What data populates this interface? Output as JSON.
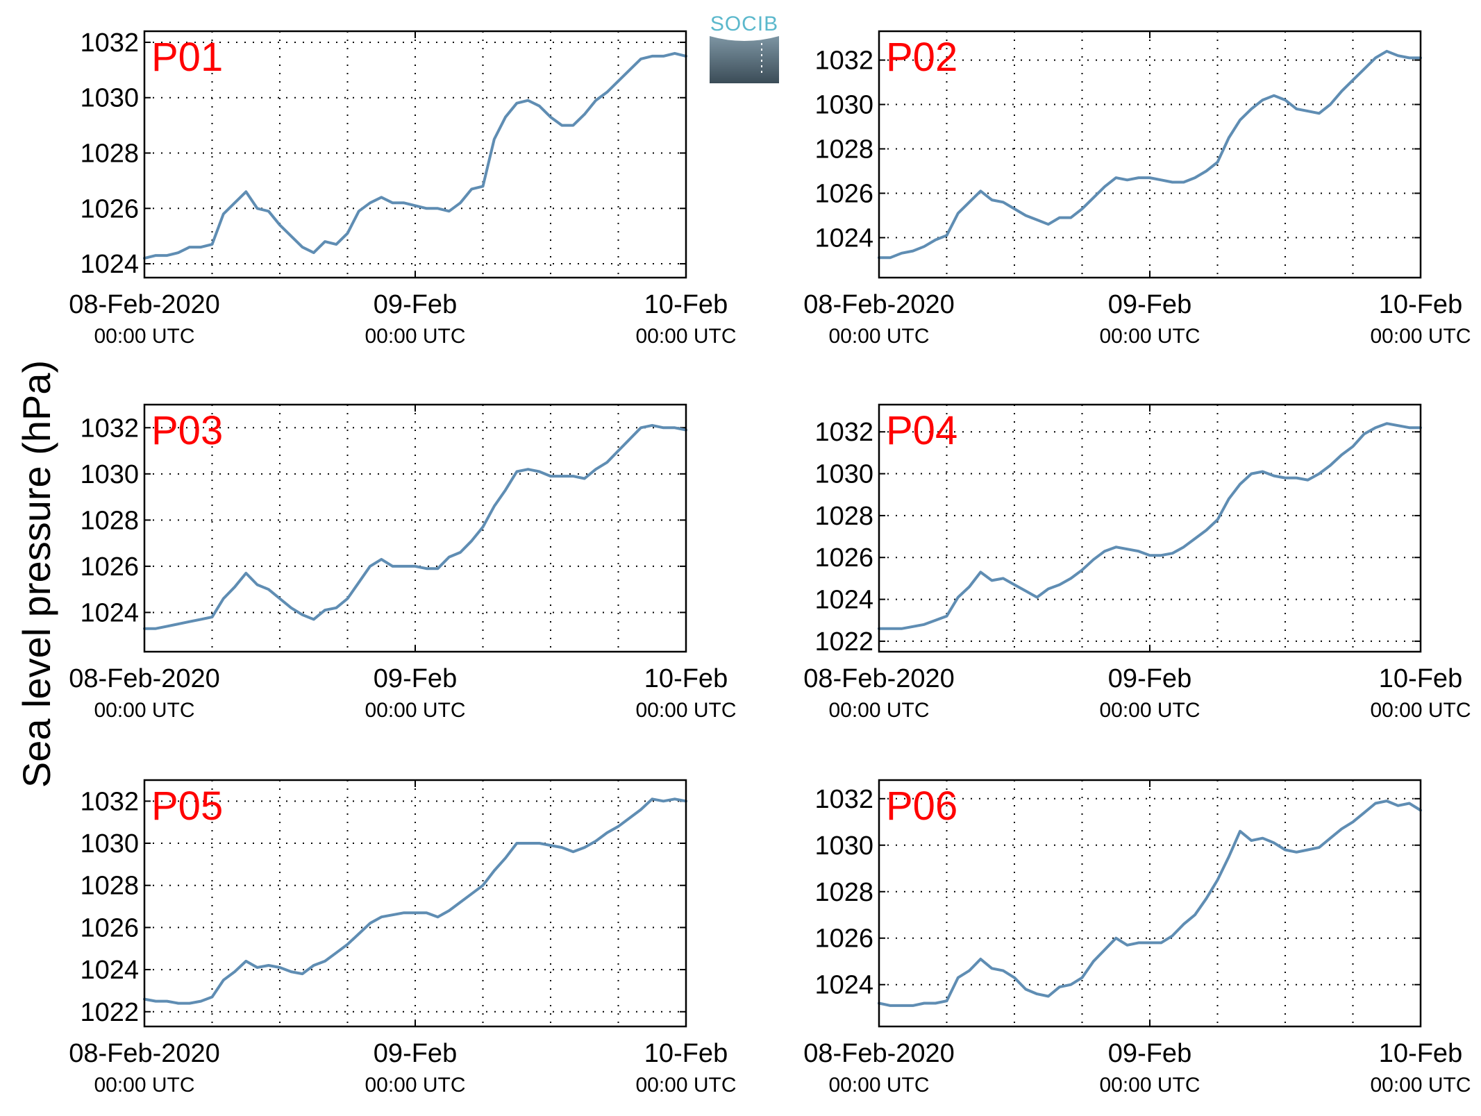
{
  "figure": {
    "ylabel": "Sea level pressure (hPa)",
    "logo_text": "SOCIB"
  },
  "colors": {
    "series": "#5f8db3",
    "panel_title": "#ff0000",
    "grid": "#000000"
  },
  "chart_data": [
    {
      "type": "line",
      "title": "P01",
      "x_ticks": [
        {
          "date": "08-Feb-2020",
          "time": "00:00 UTC"
        },
        {
          "date": "09-Feb",
          "time": "00:00 UTC"
        },
        {
          "date": "10-Feb",
          "time": "00:00 UTC"
        }
      ],
      "xlim": [
        0,
        48
      ],
      "ylim": [
        1023.5,
        1032.4
      ],
      "y_ticks": [
        1024,
        1026,
        1028,
        1030,
        1032
      ],
      "grid": true,
      "x": [
        0,
        1,
        2,
        3,
        4,
        4.5,
        5,
        6,
        7,
        8,
        9,
        10,
        11,
        12,
        13,
        14,
        15,
        16,
        17,
        18,
        19,
        20,
        21,
        22,
        23,
        24,
        25,
        26,
        27,
        28,
        29,
        30,
        31,
        32,
        33,
        34,
        35,
        36,
        37,
        38,
        39,
        40,
        41,
        42,
        43,
        44,
        45,
        46,
        47,
        48
      ],
      "values": [
        1024.2,
        1024.3,
        1024.3,
        1024.4,
        1024.6,
        1024.6,
        1024.6,
        1024.7,
        1025.8,
        1026.2,
        1026.6,
        1026.0,
        1025.9,
        1025.4,
        1025.0,
        1024.6,
        1024.4,
        1024.8,
        1024.7,
        1025.1,
        1025.9,
        1026.2,
        1026.4,
        1026.2,
        1026.2,
        1026.1,
        1026.0,
        1026.0,
        1025.9,
        1026.2,
        1026.7,
        1026.8,
        1028.5,
        1029.3,
        1029.8,
        1029.9,
        1029.7,
        1029.3,
        1029.0,
        1029.0,
        1029.4,
        1029.9,
        1030.2,
        1030.6,
        1031.0,
        1031.4,
        1031.5,
        1031.5,
        1031.6,
        1031.5
      ]
    },
    {
      "type": "line",
      "title": "P02",
      "x_ticks": [
        {
          "date": "08-Feb-2020",
          "time": "00:00 UTC"
        },
        {
          "date": "09-Feb",
          "time": "00:00 UTC"
        },
        {
          "date": "10-Feb",
          "time": "00:00 UTC"
        }
      ],
      "xlim": [
        0,
        48
      ],
      "ylim": [
        1022.2,
        1033.3
      ],
      "y_ticks": [
        1024,
        1026,
        1028,
        1030,
        1032
      ],
      "grid": true,
      "x": [
        0,
        1,
        2,
        3,
        4,
        5,
        6,
        7,
        8,
        9,
        10,
        11,
        12,
        13,
        14,
        15,
        16,
        17,
        18,
        19,
        20,
        21,
        22,
        23,
        24,
        25,
        26,
        27,
        28,
        29,
        30,
        31,
        32,
        33,
        34,
        35,
        36,
        37,
        38,
        39,
        40,
        41,
        42,
        43,
        44,
        45,
        46,
        47,
        48
      ],
      "values": [
        1023.1,
        1023.1,
        1023.3,
        1023.4,
        1023.6,
        1023.9,
        1024.1,
        1025.1,
        1025.6,
        1026.1,
        1025.7,
        1025.6,
        1025.3,
        1025.0,
        1024.8,
        1024.6,
        1024.9,
        1024.9,
        1025.3,
        1025.8,
        1026.3,
        1026.7,
        1026.6,
        1026.7,
        1026.7,
        1026.6,
        1026.5,
        1026.5,
        1026.7,
        1027.0,
        1027.4,
        1028.5,
        1029.3,
        1029.8,
        1030.2,
        1030.4,
        1030.2,
        1029.8,
        1029.7,
        1029.6,
        1030.0,
        1030.6,
        1031.1,
        1031.6,
        1032.1,
        1032.4,
        1032.2,
        1032.1,
        1032.1
      ]
    },
    {
      "type": "line",
      "title": "P03",
      "x_ticks": [
        {
          "date": "08-Feb-2020",
          "time": "00:00 UTC"
        },
        {
          "date": "09-Feb",
          "time": "00:00 UTC"
        },
        {
          "date": "10-Feb",
          "time": "00:00 UTC"
        }
      ],
      "xlim": [
        0,
        48
      ],
      "ylim": [
        1022.3,
        1033.0
      ],
      "y_ticks": [
        1024,
        1026,
        1028,
        1030,
        1032
      ],
      "grid": true,
      "x": [
        0,
        1,
        2,
        3,
        4,
        5,
        6,
        7,
        8,
        9,
        10,
        11,
        12,
        13,
        14,
        15,
        16,
        17,
        18,
        19,
        20,
        21,
        22,
        23,
        24,
        25,
        26,
        27,
        28,
        29,
        30,
        31,
        32,
        33,
        34,
        35,
        36,
        37,
        38,
        39,
        40,
        41,
        42,
        43,
        44,
        45,
        46,
        47,
        48
      ],
      "values": [
        1023.3,
        1023.3,
        1023.4,
        1023.5,
        1023.6,
        1023.7,
        1023.8,
        1024.6,
        1025.1,
        1025.7,
        1025.2,
        1025.0,
        1024.6,
        1024.2,
        1023.9,
        1023.7,
        1024.1,
        1024.2,
        1024.6,
        1025.3,
        1026.0,
        1026.3,
        1026.0,
        1026.0,
        1026.0,
        1025.9,
        1025.9,
        1026.4,
        1026.6,
        1027.1,
        1027.7,
        1028.6,
        1029.3,
        1030.1,
        1030.2,
        1030.1,
        1029.9,
        1029.9,
        1029.9,
        1029.8,
        1030.2,
        1030.5,
        1031.0,
        1031.5,
        1032.0,
        1032.1,
        1032.0,
        1032.0,
        1031.9
      ]
    },
    {
      "type": "line",
      "title": "P04",
      "x_ticks": [
        {
          "date": "08-Feb-2020",
          "time": "00:00 UTC"
        },
        {
          "date": "09-Feb",
          "time": "00:00 UTC"
        },
        {
          "date": "10-Feb",
          "time": "00:00 UTC"
        }
      ],
      "xlim": [
        0,
        48
      ],
      "ylim": [
        1021.5,
        1033.3
      ],
      "y_ticks": [
        1022,
        1024,
        1026,
        1028,
        1030,
        1032
      ],
      "grid": true,
      "x": [
        0,
        1,
        2,
        3,
        4,
        5,
        6,
        7,
        8,
        9,
        10,
        11,
        12,
        13,
        14,
        15,
        16,
        17,
        18,
        19,
        20,
        21,
        22,
        23,
        24,
        25,
        26,
        27,
        28,
        29,
        30,
        31,
        32,
        33,
        34,
        35,
        36,
        37,
        38,
        39,
        40,
        41,
        42,
        43,
        44,
        45,
        46,
        47,
        48
      ],
      "values": [
        1022.6,
        1022.6,
        1022.6,
        1022.7,
        1022.8,
        1023.0,
        1023.2,
        1024.1,
        1024.6,
        1025.3,
        1024.9,
        1025.0,
        1024.7,
        1024.4,
        1024.1,
        1024.5,
        1024.7,
        1025.0,
        1025.4,
        1025.9,
        1026.3,
        1026.5,
        1026.4,
        1026.3,
        1026.1,
        1026.1,
        1026.2,
        1026.5,
        1026.9,
        1027.3,
        1027.8,
        1028.8,
        1029.5,
        1030.0,
        1030.1,
        1029.9,
        1029.8,
        1029.8,
        1029.7,
        1030.0,
        1030.4,
        1030.9,
        1031.3,
        1031.9,
        1032.2,
        1032.4,
        1032.3,
        1032.2,
        1032.2
      ]
    },
    {
      "type": "line",
      "title": "P05",
      "x_ticks": [
        {
          "date": "08-Feb-2020",
          "time": "00:00 UTC"
        },
        {
          "date": "09-Feb",
          "time": "00:00 UTC"
        },
        {
          "date": "10-Feb",
          "time": "00:00 UTC"
        }
      ],
      "xlim": [
        0,
        48
      ],
      "ylim": [
        1021.3,
        1033.0
      ],
      "y_ticks": [
        1022,
        1024,
        1026,
        1028,
        1030,
        1032
      ],
      "grid": true,
      "x": [
        0,
        1,
        2,
        3,
        4,
        5,
        6,
        7,
        8,
        9,
        10,
        11,
        12,
        13,
        14,
        15,
        16,
        17,
        18,
        19,
        20,
        21,
        22,
        23,
        24,
        25,
        26,
        27,
        28,
        29,
        30,
        31,
        32,
        33,
        34,
        35,
        36,
        37,
        38,
        39,
        40,
        41,
        42,
        43,
        44,
        45,
        46,
        47,
        48
      ],
      "values": [
        1022.6,
        1022.5,
        1022.5,
        1022.4,
        1022.4,
        1022.5,
        1022.7,
        1023.5,
        1023.9,
        1024.4,
        1024.1,
        1024.2,
        1024.1,
        1023.9,
        1023.8,
        1024.2,
        1024.4,
        1024.8,
        1025.2,
        1025.7,
        1026.2,
        1026.5,
        1026.6,
        1026.7,
        1026.7,
        1026.7,
        1026.5,
        1026.8,
        1027.2,
        1027.6,
        1028.0,
        1028.7,
        1029.3,
        1030.0,
        1030.0,
        1030.0,
        1029.9,
        1029.8,
        1029.6,
        1029.8,
        1030.1,
        1030.5,
        1030.8,
        1031.2,
        1031.6,
        1032.1,
        1032.0,
        1032.1,
        1032.0
      ]
    },
    {
      "type": "line",
      "title": "P06",
      "x_ticks": [
        {
          "date": "08-Feb-2020",
          "time": "00:00 UTC"
        },
        {
          "date": "09-Feb",
          "time": "00:00 UTC"
        },
        {
          "date": "10-Feb",
          "time": "00:00 UTC"
        }
      ],
      "xlim": [
        0,
        48
      ],
      "ylim": [
        1022.2,
        1032.8
      ],
      "y_ticks": [
        1024,
        1026,
        1028,
        1030,
        1032
      ],
      "grid": true,
      "x": [
        0,
        1,
        2,
        3,
        4,
        5,
        6,
        7,
        8,
        9,
        10,
        11,
        12,
        13,
        14,
        15,
        16,
        17,
        18,
        19,
        20,
        21,
        22,
        23,
        24,
        25,
        26,
        27,
        28,
        29,
        30,
        31,
        32,
        33,
        34,
        35,
        36,
        37,
        38,
        39,
        40,
        41,
        42,
        43,
        44,
        45,
        46,
        47,
        48
      ],
      "values": [
        1023.2,
        1023.1,
        1023.1,
        1023.1,
        1023.2,
        1023.2,
        1023.3,
        1024.3,
        1024.6,
        1025.1,
        1024.7,
        1024.6,
        1024.3,
        1023.8,
        1023.6,
        1023.5,
        1023.9,
        1024.0,
        1024.3,
        1025.0,
        1025.5,
        1026.0,
        1025.7,
        1025.8,
        1025.8,
        1025.8,
        1026.1,
        1026.6,
        1027.0,
        1027.7,
        1028.5,
        1029.5,
        1030.6,
        1030.2,
        1030.3,
        1030.1,
        1029.8,
        1029.7,
        1029.8,
        1029.9,
        1030.3,
        1030.7,
        1031.0,
        1031.4,
        1031.8,
        1031.9,
        1031.7,
        1031.8,
        1031.5
      ]
    }
  ]
}
